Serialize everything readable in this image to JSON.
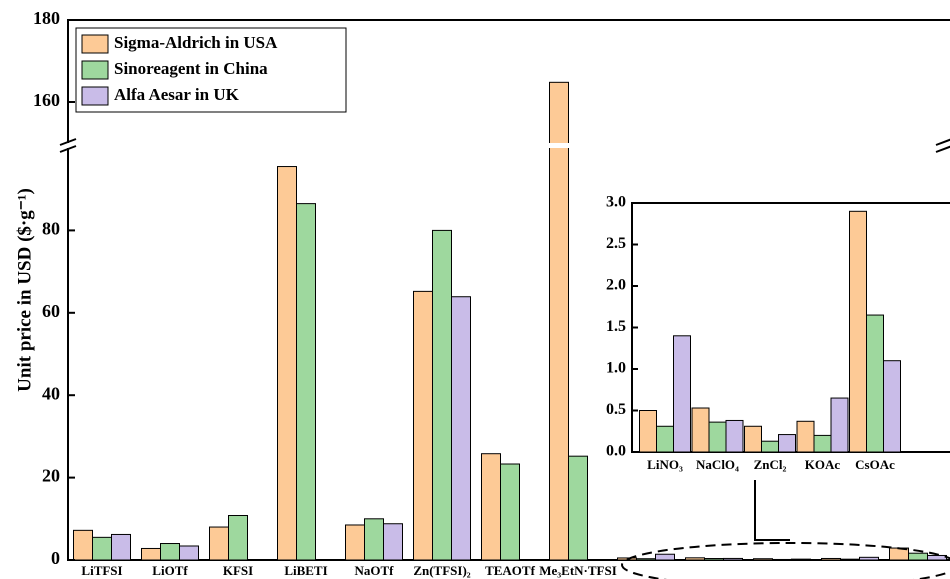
{
  "chart_data": [
    {
      "type": "bar",
      "ylabel": "Unit price in USD ($·g⁻¹)",
      "categories": [
        "LiTFSI",
        "LiOTf",
        "KFSI",
        "LiBETI",
        "NaOTf",
        "Zn(TFSI)₂",
        "TEAOTf",
        "Me₃EtN·TFSI",
        null,
        null,
        null,
        null,
        null
      ],
      "series": [
        {
          "name": "Sigma-Aldrich in USA",
          "color": "#fdca96",
          "values": [
            7.2,
            2.8,
            8.0,
            95.5,
            8.5,
            65.2,
            25.8,
            164.8,
            0.5,
            0.53,
            0.31,
            0.37,
            2.9
          ]
        },
        {
          "name": "Sinoreagent in China",
          "color": "#9ed89e",
          "values": [
            5.5,
            4.0,
            10.8,
            86.5,
            10.0,
            80.0,
            23.3,
            25.2,
            0.31,
            0.36,
            0.13,
            0.2,
            1.65
          ]
        },
        {
          "name": "Alfa Aesar in UK",
          "color": "#c9bce8",
          "values": [
            6.2,
            3.4,
            null,
            null,
            8.8,
            63.9,
            null,
            null,
            1.4,
            0.38,
            0.21,
            0.65,
            1.1
          ]
        }
      ],
      "ylim": [
        0,
        180
      ],
      "ybreak": [
        100,
        150
      ],
      "yticks": [
        0,
        20,
        40,
        60,
        80,
        160,
        180
      ],
      "legend": "upper left"
    },
    {
      "type": "bar",
      "categories": [
        "LiNO₃",
        "NaClO₄",
        "ZnCl₂",
        "KOAc",
        "CsOAc"
      ],
      "series": [
        {
          "color": "#fdca96",
          "values": [
            0.5,
            0.53,
            0.31,
            0.37,
            2.9
          ]
        },
        {
          "color": "#9ed89e",
          "values": [
            0.31,
            0.36,
            0.13,
            0.2,
            1.65
          ]
        },
        {
          "color": "#c9bce8",
          "values": [
            1.4,
            0.38,
            0.21,
            0.65,
            1.1
          ]
        }
      ],
      "ylim": [
        0,
        3
      ],
      "yticks": [
        {
          "value": 0,
          "label": "0.0"
        },
        0.5,
        {
          "value": 1,
          "label": "1.0"
        },
        1.5,
        {
          "value": 2,
          "label": "2.0"
        },
        2.5,
        {
          "value": 3,
          "label": "3.0"
        }
      ]
    }
  ]
}
